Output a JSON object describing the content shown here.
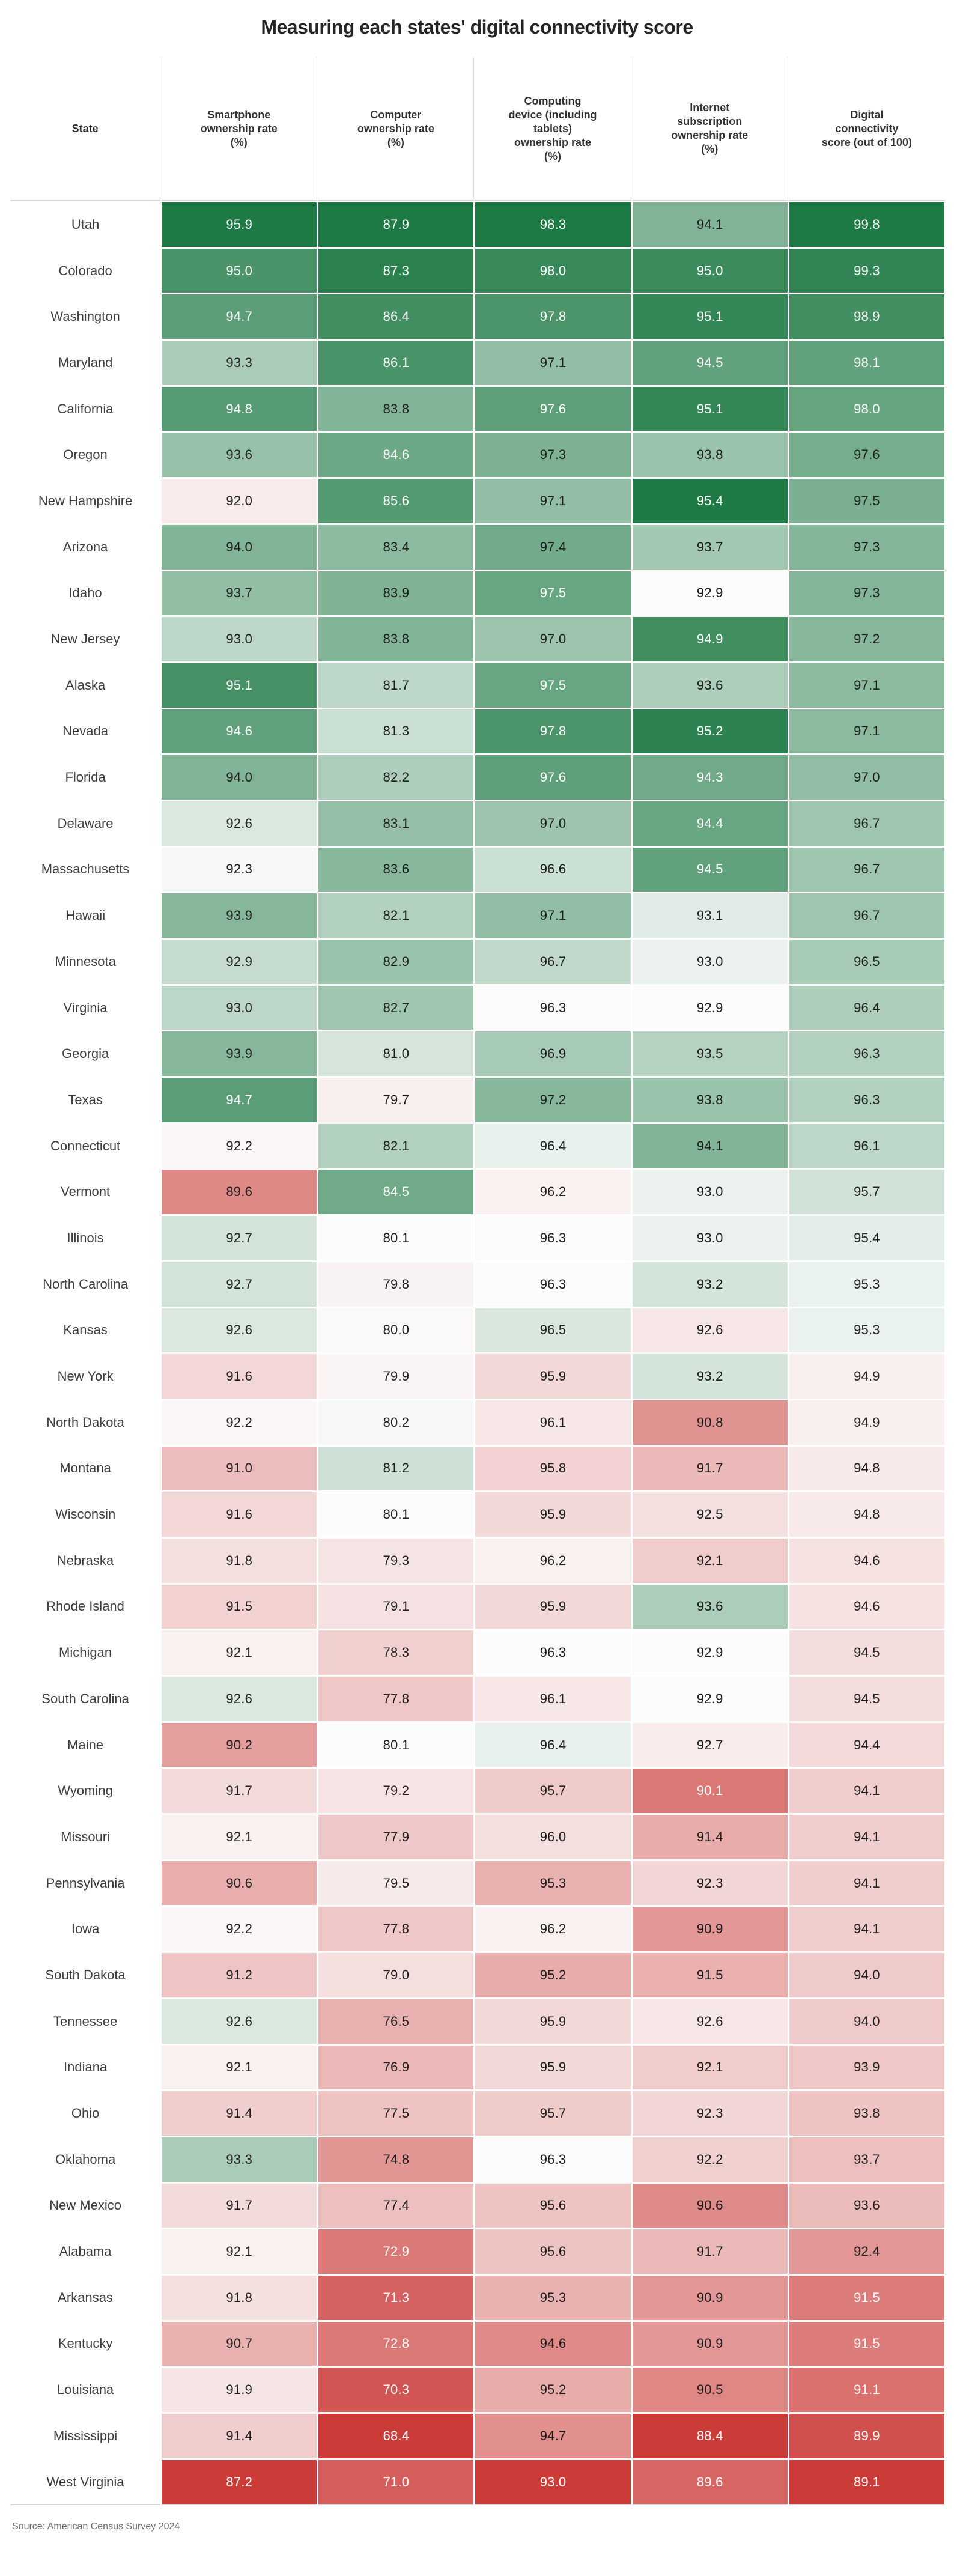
{
  "title": "Measuring each states' digital connectivity score",
  "source_note": "Source: American Census Survey 2024",
  "chart_data": {
    "type": "heatmap",
    "title": "Measuring each states' digital connectivity score",
    "source": "Source: American Census Survey 2024",
    "legend_position": "none",
    "color_scale": {
      "description": "Each numeric column is shaded independently with a diverging scale: column minimum maps to dark red, column median to white, column maximum to dark green.",
      "negative_end": "#cb3b38",
      "center": "#fcfcfc",
      "positive_end": "#1e7a44",
      "gamma": 0.8
    },
    "columns": [
      "State",
      "Smartphone ownership rate (%)",
      "Computer ownership rate (%)",
      "Computing device (including tablets) ownership rate (%)",
      "Internet subscription ownership rate (%)",
      "Digital connectivity score (out of 100)"
    ],
    "rows": [
      {
        "state": "Utah",
        "values": [
          95.9,
          87.9,
          98.3,
          94.1,
          99.8
        ]
      },
      {
        "state": "Colorado",
        "values": [
          95.0,
          87.3,
          98.0,
          95.0,
          99.3
        ]
      },
      {
        "state": "Washington",
        "values": [
          94.7,
          86.4,
          97.8,
          95.1,
          98.9
        ]
      },
      {
        "state": "Maryland",
        "values": [
          93.3,
          86.1,
          97.1,
          94.5,
          98.1
        ]
      },
      {
        "state": "California",
        "values": [
          94.8,
          83.8,
          97.6,
          95.1,
          98.0
        ]
      },
      {
        "state": "Oregon",
        "values": [
          93.6,
          84.6,
          97.3,
          93.8,
          97.6
        ]
      },
      {
        "state": "New Hampshire",
        "values": [
          92.0,
          85.6,
          97.1,
          95.4,
          97.5
        ]
      },
      {
        "state": "Arizona",
        "values": [
          94.0,
          83.4,
          97.4,
          93.7,
          97.3
        ]
      },
      {
        "state": "Idaho",
        "values": [
          93.7,
          83.9,
          97.5,
          92.9,
          97.3
        ]
      },
      {
        "state": "New Jersey",
        "values": [
          93.0,
          83.8,
          97.0,
          94.9,
          97.2
        ]
      },
      {
        "state": "Alaska",
        "values": [
          95.1,
          81.7,
          97.5,
          93.6,
          97.1
        ]
      },
      {
        "state": "Nevada",
        "values": [
          94.6,
          81.3,
          97.8,
          95.2,
          97.1
        ]
      },
      {
        "state": "Florida",
        "values": [
          94.0,
          82.2,
          97.6,
          94.3,
          97.0
        ]
      },
      {
        "state": "Delaware",
        "values": [
          92.6,
          83.1,
          97.0,
          94.4,
          96.7
        ]
      },
      {
        "state": "Massachusetts",
        "values": [
          92.3,
          83.6,
          96.6,
          94.5,
          96.7
        ]
      },
      {
        "state": "Hawaii",
        "values": [
          93.9,
          82.1,
          97.1,
          93.1,
          96.7
        ]
      },
      {
        "state": "Minnesota",
        "values": [
          92.9,
          82.9,
          96.7,
          93.0,
          96.5
        ]
      },
      {
        "state": "Virginia",
        "values": [
          93.0,
          82.7,
          96.3,
          92.9,
          96.4
        ]
      },
      {
        "state": "Georgia",
        "values": [
          93.9,
          81.0,
          96.9,
          93.5,
          96.3
        ]
      },
      {
        "state": "Texas",
        "values": [
          94.7,
          79.7,
          97.2,
          93.8,
          96.3
        ]
      },
      {
        "state": "Connecticut",
        "values": [
          92.2,
          82.1,
          96.4,
          94.1,
          96.1
        ]
      },
      {
        "state": "Vermont",
        "values": [
          89.6,
          84.5,
          96.2,
          93.0,
          95.7
        ]
      },
      {
        "state": "Illinois",
        "values": [
          92.7,
          80.1,
          96.3,
          93.0,
          95.4
        ]
      },
      {
        "state": "North Carolina",
        "values": [
          92.7,
          79.8,
          96.3,
          93.2,
          95.3
        ]
      },
      {
        "state": "Kansas",
        "values": [
          92.6,
          80.0,
          96.5,
          92.6,
          95.3
        ]
      },
      {
        "state": "New York",
        "values": [
          91.6,
          79.9,
          95.9,
          93.2,
          94.9
        ]
      },
      {
        "state": "North Dakota",
        "values": [
          92.2,
          80.2,
          96.1,
          90.8,
          94.9
        ]
      },
      {
        "state": "Montana",
        "values": [
          91.0,
          81.2,
          95.8,
          91.7,
          94.8
        ]
      },
      {
        "state": "Wisconsin",
        "values": [
          91.6,
          80.1,
          95.9,
          92.5,
          94.8
        ]
      },
      {
        "state": "Nebraska",
        "values": [
          91.8,
          79.3,
          96.2,
          92.1,
          94.6
        ]
      },
      {
        "state": "Rhode Island",
        "values": [
          91.5,
          79.1,
          95.9,
          93.6,
          94.6
        ]
      },
      {
        "state": "Michigan",
        "values": [
          92.1,
          78.3,
          96.3,
          92.9,
          94.5
        ]
      },
      {
        "state": "South Carolina",
        "values": [
          92.6,
          77.8,
          96.1,
          92.9,
          94.5
        ]
      },
      {
        "state": "Maine",
        "values": [
          90.2,
          80.1,
          96.4,
          92.7,
          94.4
        ]
      },
      {
        "state": "Wyoming",
        "values": [
          91.7,
          79.2,
          95.7,
          90.1,
          94.1
        ]
      },
      {
        "state": "Missouri",
        "values": [
          92.1,
          77.9,
          96.0,
          91.4,
          94.1
        ]
      },
      {
        "state": "Pennsylvania",
        "values": [
          90.6,
          79.5,
          95.3,
          92.3,
          94.1
        ]
      },
      {
        "state": "Iowa",
        "values": [
          92.2,
          77.8,
          96.2,
          90.9,
          94.1
        ]
      },
      {
        "state": "South Dakota",
        "values": [
          91.2,
          79.0,
          95.2,
          91.5,
          94.0
        ]
      },
      {
        "state": "Tennessee",
        "values": [
          92.6,
          76.5,
          95.9,
          92.6,
          94.0
        ]
      },
      {
        "state": "Indiana",
        "values": [
          92.1,
          76.9,
          95.9,
          92.1,
          93.9
        ]
      },
      {
        "state": "Ohio",
        "values": [
          91.4,
          77.5,
          95.7,
          92.3,
          93.8
        ]
      },
      {
        "state": "Oklahoma",
        "values": [
          93.3,
          74.8,
          96.3,
          92.2,
          93.7
        ]
      },
      {
        "state": "New Mexico",
        "values": [
          91.7,
          77.4,
          95.6,
          90.6,
          93.6
        ]
      },
      {
        "state": "Alabama",
        "values": [
          92.1,
          72.9,
          95.6,
          91.7,
          92.4
        ]
      },
      {
        "state": "Arkansas",
        "values": [
          91.8,
          71.3,
          95.3,
          90.9,
          91.5
        ]
      },
      {
        "state": "Kentucky",
        "values": [
          90.7,
          72.8,
          94.6,
          90.9,
          91.5
        ]
      },
      {
        "state": "Louisiana",
        "values": [
          91.9,
          70.3,
          95.2,
          90.5,
          91.1
        ]
      },
      {
        "state": "Mississippi",
        "values": [
          91.4,
          68.4,
          94.7,
          88.4,
          89.9
        ]
      },
      {
        "state": "West Virginia",
        "values": [
          87.2,
          71.0,
          93.0,
          89.6,
          89.1
        ]
      }
    ]
  }
}
